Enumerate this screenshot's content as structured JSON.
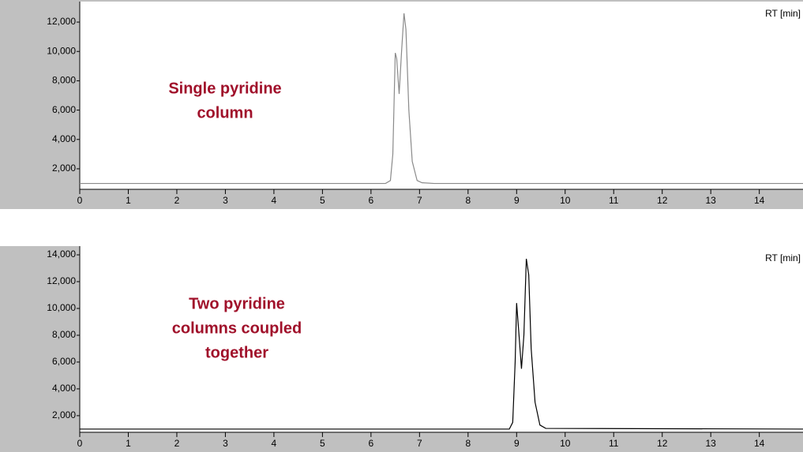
{
  "chart_data": [
    {
      "type": "line",
      "x_label": "RT [min]",
      "annotation": [
        "Single pyridine",
        "column"
      ],
      "xlim": [
        0,
        14.9
      ],
      "xticks": [
        0,
        1,
        2,
        3,
        4,
        5,
        6,
        7,
        8,
        9,
        10,
        11,
        12,
        13,
        14
      ],
      "ylim": [
        600,
        13400
      ],
      "yticks": [
        {
          "value": 2000,
          "label": "2,000"
        },
        {
          "value": 4000,
          "label": "4,000"
        },
        {
          "value": 6000,
          "label": "6,000"
        },
        {
          "value": 8000,
          "label": "8,000"
        },
        {
          "value": 10000,
          "label": "10,000"
        },
        {
          "value": 12000,
          "label": "12,000"
        }
      ],
      "series": [
        {
          "color": "#8a8a8a",
          "x": [
            0,
            6.3,
            6.4,
            6.45,
            6.5,
            6.53,
            6.58,
            6.63,
            6.68,
            6.72,
            6.78,
            6.85,
            6.95,
            7.05,
            7.3,
            14.9
          ],
          "values": [
            1000,
            1000,
            1200,
            3000,
            9900,
            9500,
            7100,
            10000,
            12600,
            11500,
            6000,
            2500,
            1200,
            1050,
            1000,
            1000
          ]
        }
      ]
    },
    {
      "type": "line",
      "x_label": "RT [min]",
      "annotation": [
        "Two pyridine",
        "columns coupled",
        "together"
      ],
      "xlim": [
        0,
        14.9
      ],
      "xticks": [
        0,
        1,
        2,
        3,
        4,
        5,
        6,
        7,
        8,
        9,
        10,
        11,
        12,
        13,
        14
      ],
      "ylim": [
        760,
        14650
      ],
      "yticks": [
        {
          "value": 2000,
          "label": "2,000"
        },
        {
          "value": 4000,
          "label": "4,000"
        },
        {
          "value": 6000,
          "label": "6,000"
        },
        {
          "value": 8000,
          "label": "8,000"
        },
        {
          "value": 10000,
          "label": "10,000"
        },
        {
          "value": 12000,
          "label": "12,000"
        },
        {
          "value": 14000,
          "label": "14,000"
        }
      ],
      "series": [
        {
          "color": "#000000",
          "x": [
            0,
            8.85,
            8.92,
            8.97,
            9.0,
            9.05,
            9.1,
            9.15,
            9.2,
            9.25,
            9.3,
            9.38,
            9.48,
            9.6,
            14.9
          ],
          "values": [
            1000,
            1000,
            1500,
            6000,
            10400,
            8000,
            5500,
            8000,
            13700,
            12500,
            7000,
            3000,
            1300,
            1050,
            1000
          ]
        }
      ]
    }
  ]
}
